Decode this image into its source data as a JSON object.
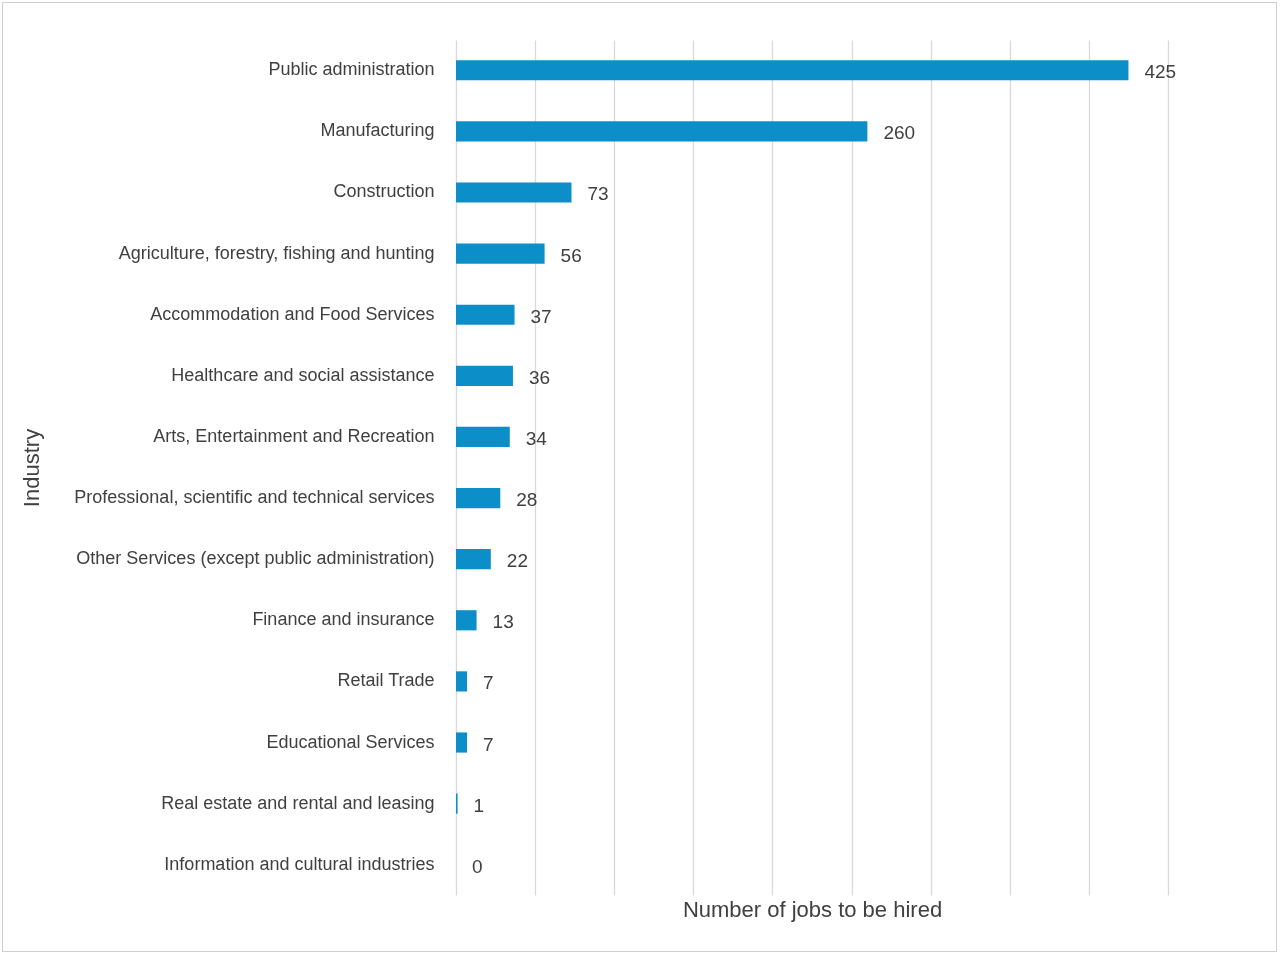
{
  "chart_data": {
    "type": "bar",
    "orientation": "horizontal",
    "xlabel": "Number of jobs to be hired",
    "ylabel": "Industry",
    "categories": [
      "Public administration",
      "Manufacturing",
      "Construction",
      "Agriculture, forestry, fishing and hunting",
      "Accommodation and Food Services",
      "Healthcare and social assistance",
      "Arts, Entertainment and Recreation",
      "Professional, scientific and technical services",
      "Other Services (except public administration)",
      "Finance and insurance",
      "Retail Trade",
      "Educational Services",
      "Real estate and rental and leasing",
      "Information and cultural industries"
    ],
    "values": [
      425,
      260,
      73,
      56,
      37,
      36,
      34,
      28,
      22,
      13,
      7,
      7,
      1,
      0
    ],
    "color": "#0c8fc8",
    "xlim": [
      0,
      450
    ],
    "xticks": [
      {
        "value": 0,
        "label": null
      },
      {
        "value": 50,
        "label": null
      },
      {
        "value": 100,
        "label": null
      },
      {
        "value": 150,
        "label": null
      },
      {
        "value": 200,
        "label": null
      },
      {
        "value": 250,
        "label": null
      },
      {
        "value": 300,
        "label": null
      },
      {
        "value": 350,
        "label": null
      },
      {
        "value": 400,
        "label": null
      },
      {
        "value": 450,
        "label": null
      }
    ],
    "tick_labels": "y",
    "grid": "x",
    "data_labels": true
  }
}
